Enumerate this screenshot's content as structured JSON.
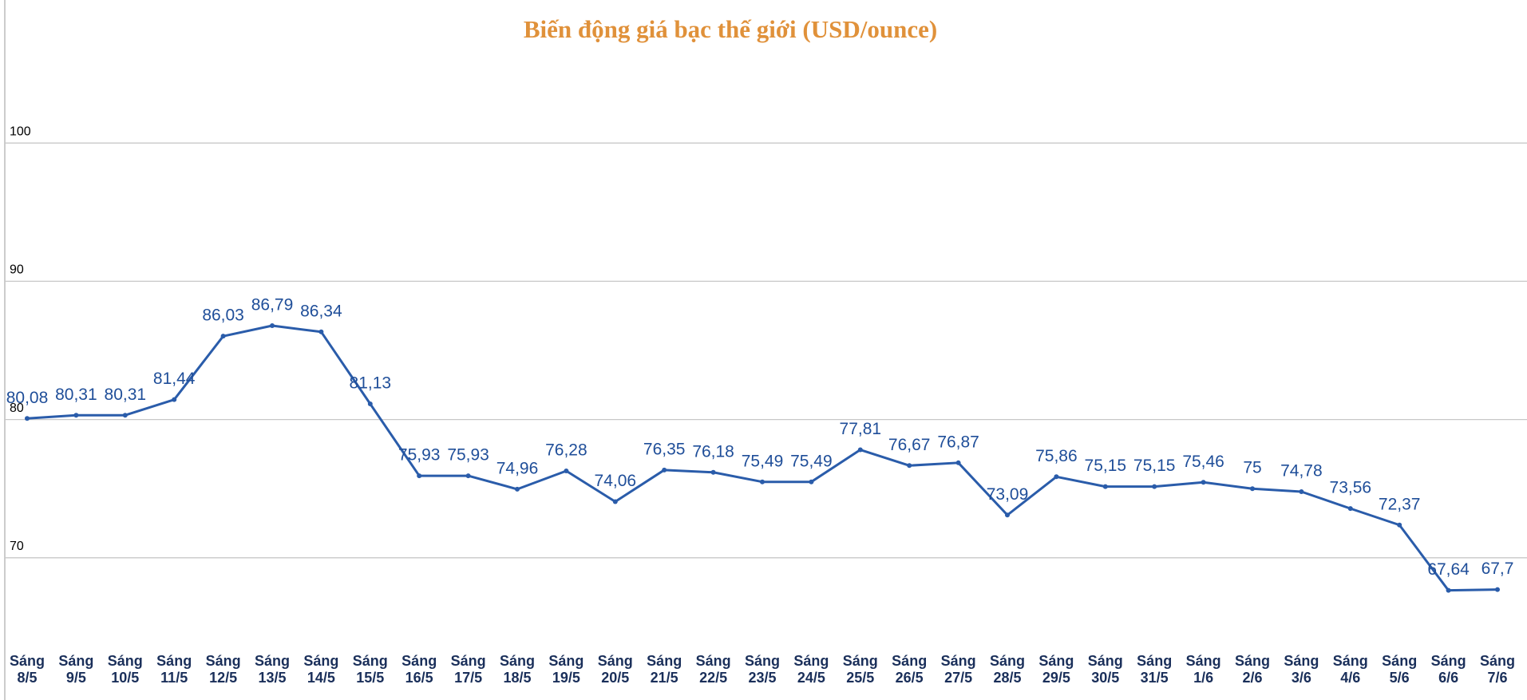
{
  "chart_data": {
    "type": "line",
    "title": "Biến động giá bạc thế giới (USD/ounce)",
    "categories": [
      "Sáng 8/5",
      "Sáng 9/5",
      "Sáng 10/5",
      "Sáng 11/5",
      "Sáng 12/5",
      "Sáng 13/5",
      "Sáng 14/5",
      "Sáng 15/5",
      "Sáng 16/5",
      "Sáng 17/5",
      "Sáng 18/5",
      "Sáng 19/5",
      "Sáng 20/5",
      "Sáng 21/5",
      "Sáng 22/5",
      "Sáng 23/5",
      "Sáng 24/5",
      "Sáng 25/5",
      "Sáng 26/5",
      "Sáng 27/5",
      "Sáng 28/5",
      "Sáng 29/5",
      "Sáng 30/5",
      "Sáng 31/5",
      "Sáng 1/6",
      "Sáng 2/6",
      "Sáng 3/6",
      "Sáng 4/6",
      "Sáng 5/6",
      "Sáng 6/6",
      "Sáng 7/6"
    ],
    "values": [
      80.08,
      80.31,
      80.31,
      81.44,
      86.03,
      86.79,
      86.34,
      81.13,
      75.93,
      75.93,
      74.96,
      76.28,
      74.06,
      76.35,
      76.18,
      75.49,
      75.49,
      77.81,
      76.67,
      76.87,
      73.09,
      75.86,
      75.15,
      75.15,
      75.46,
      75,
      74.78,
      73.56,
      72.37,
      67.64,
      67.7
    ],
    "value_labels": [
      "80,08",
      "80,31",
      "80,31",
      "81,44",
      "86,03",
      "86,79",
      "86,34",
      "81,13",
      "75,93",
      "75,93",
      "74,96",
      "76,28",
      "74,06",
      "76,35",
      "76,18",
      "75,49",
      "75,49",
      "77,81",
      "76,67",
      "76,87",
      "73,09",
      "75,86",
      "75,15",
      "75,15",
      "75,46",
      "75",
      "74,78",
      "73,56",
      "72,37",
      "67,64",
      "67,7"
    ],
    "color": "#2a5caa",
    "ylim": [
      60,
      110
    ],
    "yticks": [
      70,
      80,
      90,
      100
    ],
    "grid": true
  }
}
